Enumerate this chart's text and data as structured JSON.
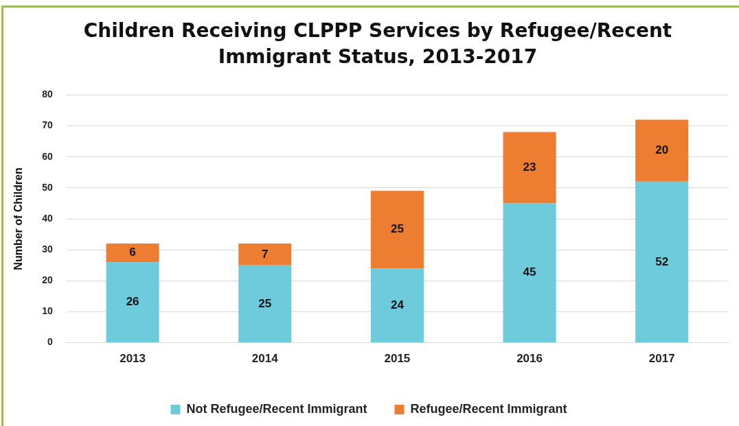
{
  "chart_data": {
    "type": "bar",
    "title": "Children Receiving CLPPP Services by Refugee/Recent Immigrant Status, 2013-2017",
    "ylabel": "Number of Children",
    "categories": [
      "2013",
      "2014",
      "2015",
      "2016",
      "2017"
    ],
    "series": [
      {
        "name": "Not Refugee/Recent Immigrant",
        "color": "#6dcbdc",
        "values": [
          26,
          25,
          24,
          45,
          52
        ]
      },
      {
        "name": "Refugee/Recent Immigrant",
        "color": "#ed7d31",
        "values": [
          6,
          7,
          25,
          23,
          20
        ]
      }
    ],
    "stacked": true,
    "ylim": [
      0,
      80
    ],
    "yticks": [
      0,
      10,
      20,
      30,
      40,
      50,
      60,
      70,
      80
    ],
    "grid": "y",
    "legend": "bottom",
    "data_labels": true
  }
}
